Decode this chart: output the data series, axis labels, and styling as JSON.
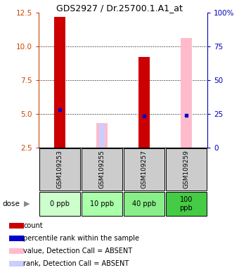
{
  "title": "GDS2927 / Dr.25700.1.A1_at",
  "samples": [
    "GSM109253",
    "GSM109255",
    "GSM109257",
    "GSM109259"
  ],
  "doses": [
    "0 ppb",
    "10 ppb",
    "40 ppb",
    "100\nppb"
  ],
  "dose_colors": [
    "#ccffcc",
    "#aaffaa",
    "#88ee88",
    "#44cc44"
  ],
  "sample_bg": "#cccccc",
  "count_values": [
    12.2,
    null,
    9.2,
    null
  ],
  "count_color": "#cc0000",
  "percentile_values": [
    5.3,
    null,
    4.85,
    4.9
  ],
  "percentile_color": "#0000cc",
  "absent_value_values": [
    null,
    4.3,
    null,
    10.6
  ],
  "absent_value_color": "#ffbbcc",
  "absent_rank_values": [
    null,
    4.25,
    null,
    null
  ],
  "absent_rank_color": "#ccccff",
  "ylim_left": [
    2.5,
    12.5
  ],
  "ylim_right": [
    0,
    100
  ],
  "yticks_left": [
    2.5,
    5.0,
    7.5,
    10.0,
    12.5
  ],
  "yticks_right": [
    0,
    25,
    50,
    75,
    100
  ],
  "left_axis_color": "#cc4400",
  "right_axis_color": "#0000bb",
  "grid_lines": [
    5.0,
    7.5,
    10.0
  ],
  "legend_items": [
    {
      "color": "#cc0000",
      "label": "count"
    },
    {
      "color": "#0000cc",
      "label": "percentile rank within the sample"
    },
    {
      "color": "#ffbbcc",
      "label": "value, Detection Call = ABSENT"
    },
    {
      "color": "#ccccff",
      "label": "rank, Detection Call = ABSENT"
    }
  ]
}
